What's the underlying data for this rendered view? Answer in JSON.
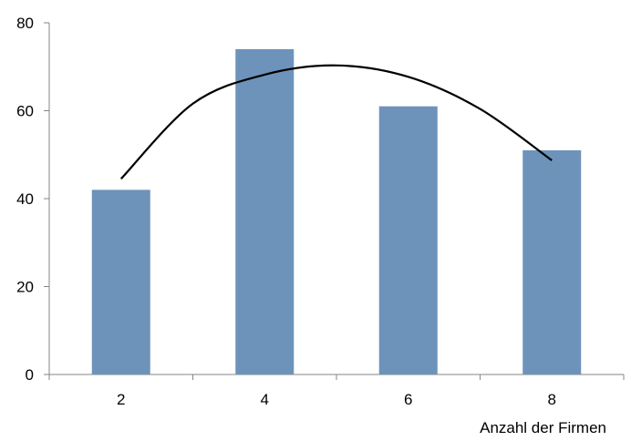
{
  "chart_data": {
    "type": "bar",
    "categories": [
      "2",
      "4",
      "6",
      "8"
    ],
    "values": [
      42,
      74,
      61,
      51
    ],
    "trendline": {
      "type": "polynomial",
      "order": 2,
      "x": [
        2,
        3,
        4,
        5,
        6,
        7,
        8
      ],
      "y": [
        44.5,
        61.6,
        68.2,
        70.3,
        67.7,
        60.4,
        48.7
      ]
    },
    "title": "",
    "xlabel": "Anzahl der Firmen",
    "ylabel": "",
    "ylim": [
      0,
      80
    ],
    "yticks": [
      0,
      20,
      40,
      60,
      80
    ],
    "grid": false,
    "legend": "none",
    "colors": {
      "bar": "#6d93ba",
      "trendline": "#000000",
      "axis": "#868686"
    }
  }
}
